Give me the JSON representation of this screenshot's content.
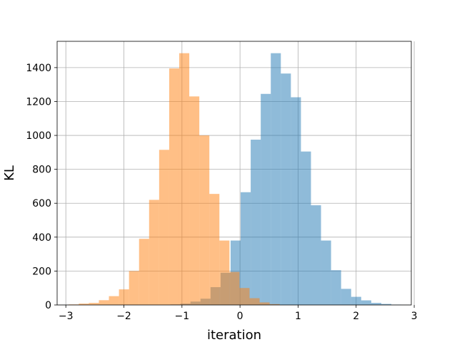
{
  "chart_data": {
    "type": "bar",
    "xlabel": "iteration",
    "ylabel": "KL",
    "xlim": [
      -3.15,
      2.95
    ],
    "ylim": [
      0,
      1555
    ],
    "grid": true,
    "xticks": [
      -3,
      -2,
      -1,
      0,
      1,
      2,
      3
    ],
    "yticks": [
      0,
      200,
      400,
      600,
      800,
      1000,
      1200,
      1400
    ],
    "xtick_labels": [
      "−3",
      "−2",
      "−1",
      "0",
      "1",
      "2",
      "3"
    ],
    "ytick_labels": [
      "0",
      "200",
      "400",
      "600",
      "800",
      "1000",
      "1200",
      "1400"
    ],
    "series": [
      {
        "color": "#1f77b4",
        "opacity": 0.5,
        "bin_start": -1.2,
        "bin_width": 0.173,
        "values": [
          3,
          8,
          20,
          37,
          105,
          190,
          380,
          665,
          975,
          1245,
          1485,
          1365,
          1225,
          905,
          588,
          380,
          205,
          95,
          48,
          27,
          12,
          6,
          2
        ]
      },
      {
        "color": "#ff7f0e",
        "opacity": 0.5,
        "bin_start": -2.95,
        "bin_width": 0.173,
        "values": [
          3,
          8,
          12,
          28,
          52,
          92,
          200,
          390,
          620,
          915,
          1395,
          1485,
          1230,
          1000,
          655,
          380,
          195,
          100,
          40,
          15,
          5
        ]
      }
    ]
  }
}
